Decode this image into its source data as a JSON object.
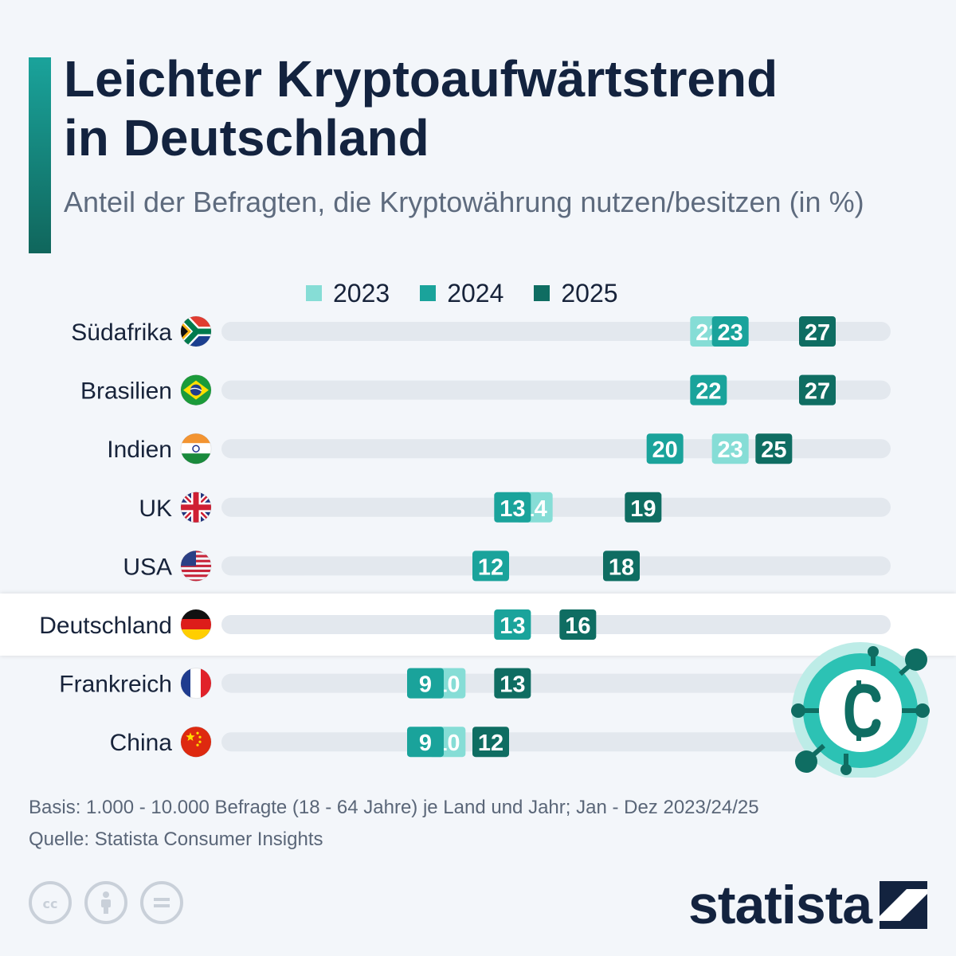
{
  "title_line1": "Leichter Kryptoaufwärtstrend",
  "title_line2": "in Deutschland",
  "subtitle": "Anteil der Befragten, die Kryptowährung nutzen/besitzen (in %)",
  "colors": {
    "2023": "#86ddd6",
    "2024": "#1aa39b",
    "2025": "#0f6d62",
    "track": "#e3e8ee"
  },
  "chart_data": {
    "type": "dot-plot",
    "title": "Leichter Kryptoaufwärtstrend in Deutschland",
    "subtitle": "Anteil der Befragten, die Kryptowährung nutzen/besitzen (in %)",
    "legend": [
      "2023",
      "2024",
      "2025"
    ],
    "legend_position": "top",
    "xlim": [
      0,
      30
    ],
    "categories": [
      "Südafrika",
      "Brasilien",
      "Indien",
      "UK",
      "USA",
      "Deutschland",
      "Frankreich",
      "China"
    ],
    "highlight": "Deutschland",
    "series": [
      {
        "name": "2023",
        "values": [
          22,
          27,
          23,
          14,
          18,
          13,
          10,
          10
        ]
      },
      {
        "name": "2024",
        "values": [
          23,
          22,
          20,
          13,
          12,
          13,
          9,
          9
        ]
      },
      {
        "name": "2025",
        "values": [
          27,
          27,
          25,
          19,
          18,
          16,
          13,
          12
        ]
      }
    ],
    "flags": [
      "flag-south-africa",
      "flag-brazil",
      "flag-india",
      "flag-uk",
      "flag-usa",
      "flag-germany",
      "flag-france",
      "flag-china"
    ]
  },
  "footer": {
    "basis": "Basis: 1.000 - 10.000 Befragte (18 - 64 Jahre) je Land und Jahr; Jan - Dez 2023/24/25",
    "source": "Quelle: Statista Consumer Insights"
  },
  "brand": "statista",
  "icons": [
    "cc-icon",
    "by-icon",
    "nd-icon",
    "crypto-coin-icon",
    "statista-logo-icon"
  ]
}
